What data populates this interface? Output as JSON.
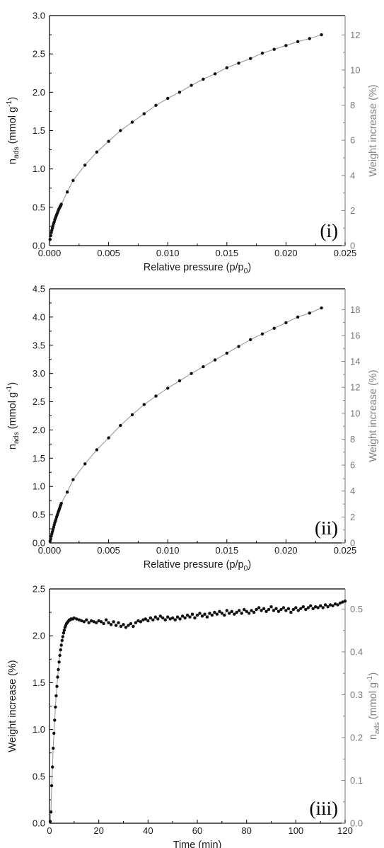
{
  "chart_data": [
    {
      "type": "scatter",
      "panel_label": "(i)",
      "xlabel": "Relative pressure (p/p₀)",
      "ylabel": "n_ads (mmol g⁻¹)",
      "y2label": "Weight increase (%)",
      "xlim": [
        0,
        0.025
      ],
      "ylim": [
        0,
        3.0
      ],
      "y2lim": [
        0,
        13.1
      ],
      "xticks": [
        "0.000",
        "0.005",
        "0.010",
        "0.015",
        "0.020",
        "0.025"
      ],
      "yticks": [
        "0.0",
        "0.5",
        "1.0",
        "1.5",
        "2.0",
        "2.5",
        "3.0"
      ],
      "y2ticks": [
        "0",
        "2",
        "4",
        "6",
        "8",
        "10",
        "12"
      ],
      "series": [
        {
          "x": [
            5e-05,
            0.0001,
            0.00015,
            0.0002,
            0.00025,
            0.0003,
            0.00035,
            0.0004,
            0.00045,
            0.0005,
            0.00055,
            0.0006,
            0.00065,
            0.0007,
            0.00075,
            0.0008,
            0.00085,
            0.0009,
            0.00095,
            0.001,
            0.0015,
            0.002,
            0.003,
            0.004,
            0.005,
            0.006,
            0.007,
            0.008,
            0.009,
            0.01,
            0.011,
            0.012,
            0.013,
            0.014,
            0.015,
            0.016,
            0.017,
            0.018,
            0.019,
            0.02,
            0.021,
            0.022,
            0.023
          ],
          "y": [
            0.08,
            0.13,
            0.17,
            0.2,
            0.23,
            0.26,
            0.29,
            0.31,
            0.34,
            0.36,
            0.38,
            0.4,
            0.42,
            0.44,
            0.46,
            0.48,
            0.49,
            0.51,
            0.52,
            0.54,
            0.7,
            0.85,
            1.05,
            1.22,
            1.36,
            1.5,
            1.61,
            1.72,
            1.83,
            1.92,
            2.0,
            2.09,
            2.17,
            2.24,
            2.32,
            2.38,
            2.44,
            2.51,
            2.56,
            2.61,
            2.66,
            2.7,
            2.75
          ]
        }
      ]
    },
    {
      "type": "scatter",
      "panel_label": "(ii)",
      "xlabel": "Relative pressure (p/p₀)",
      "ylabel": "n_ads (mmol g⁻¹)",
      "y2label": "Weight increase (%)",
      "xlim": [
        0,
        0.025
      ],
      "ylim": [
        0,
        4.5
      ],
      "y2lim": [
        0,
        19.6
      ],
      "xticks": [
        "0.000",
        "0.005",
        "0.010",
        "0.015",
        "0.020",
        "0.025"
      ],
      "yticks": [
        "0.0",
        "0.5",
        "1.0",
        "1.5",
        "2.0",
        "2.5",
        "3.0",
        "3.5",
        "4.0",
        "4.5"
      ],
      "y2ticks": [
        "0",
        "2",
        "4",
        "6",
        "8",
        "10",
        "12",
        "14",
        "16",
        "18"
      ],
      "series": [
        {
          "x": [
            5e-05,
            0.0001,
            0.00015,
            0.0002,
            0.00025,
            0.0003,
            0.00035,
            0.0004,
            0.00045,
            0.0005,
            0.00055,
            0.0006,
            0.00065,
            0.0007,
            0.00075,
            0.0008,
            0.00085,
            0.0009,
            0.00095,
            0.001,
            0.0015,
            0.002,
            0.003,
            0.004,
            0.005,
            0.006,
            0.007,
            0.008,
            0.009,
            0.01,
            0.011,
            0.012,
            0.013,
            0.014,
            0.015,
            0.016,
            0.017,
            0.018,
            0.019,
            0.02,
            0.021,
            0.022,
            0.023
          ],
          "y": [
            0.03,
            0.07,
            0.12,
            0.16,
            0.2,
            0.24,
            0.28,
            0.32,
            0.36,
            0.39,
            0.42,
            0.46,
            0.49,
            0.52,
            0.55,
            0.58,
            0.61,
            0.64,
            0.67,
            0.7,
            0.9,
            1.12,
            1.4,
            1.65,
            1.86,
            2.08,
            2.27,
            2.45,
            2.6,
            2.74,
            2.87,
            3.0,
            3.12,
            3.24,
            3.36,
            3.48,
            3.6,
            3.7,
            3.8,
            3.9,
            4.0,
            4.07,
            4.16
          ]
        }
      ]
    },
    {
      "type": "scatter",
      "panel_label": "(iii)",
      "xlabel": "Time (min)",
      "ylabel": "Weight increase (%)",
      "y2label": "n_ads (mmol g⁻¹)",
      "xlim": [
        0,
        120
      ],
      "ylim": [
        0,
        2.5
      ],
      "y2lim": [
        0,
        0.547
      ],
      "xticks": [
        "0",
        "20",
        "40",
        "60",
        "80",
        "100",
        "120"
      ],
      "yticks": [
        "0.0",
        "0.5",
        "1.0",
        "1.5",
        "2.0",
        "2.5"
      ],
      "y2ticks": [
        "0.0",
        "0.1",
        "0.2",
        "0.3",
        "0.4",
        "0.5"
      ],
      "series": [
        {
          "x": [
            0.3,
            0.6,
            0.9,
            1.2,
            1.5,
            1.8,
            2.1,
            2.4,
            2.7,
            3.0,
            3.3,
            3.6,
            3.9,
            4.2,
            4.5,
            4.8,
            5.1,
            5.4,
            5.7,
            6.0,
            6.3,
            6.6,
            6.9,
            7.2,
            7.5,
            7.8,
            8.1,
            8.4,
            8.7,
            9.0,
            9.5,
            10,
            11,
            12,
            13,
            14,
            15,
            16,
            17,
            18,
            19,
            20,
            21,
            22,
            23,
            24,
            25,
            26,
            27,
            28,
            29,
            30,
            31,
            32,
            33,
            34,
            35,
            36,
            37,
            38,
            39,
            40,
            41,
            42,
            43,
            44,
            45,
            46,
            47,
            48,
            49,
            50,
            51,
            52,
            53,
            54,
            55,
            56,
            57,
            58,
            59,
            60,
            61,
            62,
            63,
            64,
            65,
            66,
            67,
            68,
            69,
            70,
            71,
            72,
            73,
            74,
            75,
            76,
            77,
            78,
            79,
            80,
            81,
            82,
            83,
            84,
            85,
            86,
            87,
            88,
            89,
            90,
            91,
            92,
            93,
            94,
            95,
            96,
            97,
            98,
            99,
            100,
            101,
            102,
            103,
            104,
            105,
            106,
            107,
            108,
            109,
            110,
            111,
            112,
            113,
            114,
            115,
            116,
            117,
            118,
            119,
            120
          ],
          "y": [
            0.02,
            0.12,
            0.4,
            0.6,
            0.8,
            0.96,
            1.1,
            1.24,
            1.36,
            1.46,
            1.56,
            1.64,
            1.72,
            1.79,
            1.85,
            1.9,
            1.95,
            1.99,
            2.03,
            2.06,
            2.09,
            2.11,
            2.13,
            2.14,
            2.15,
            2.16,
            2.17,
            2.17,
            2.18,
            2.18,
            2.18,
            2.19,
            2.18,
            2.17,
            2.16,
            2.15,
            2.17,
            2.14,
            2.16,
            2.15,
            2.14,
            2.16,
            2.15,
            2.13,
            2.17,
            2.14,
            2.12,
            2.15,
            2.11,
            2.14,
            2.1,
            2.12,
            2.09,
            2.11,
            2.13,
            2.1,
            2.14,
            2.16,
            2.15,
            2.17,
            2.18,
            2.16,
            2.19,
            2.17,
            2.2,
            2.18,
            2.21,
            2.19,
            2.17,
            2.2,
            2.18,
            2.19,
            2.17,
            2.2,
            2.18,
            2.21,
            2.19,
            2.22,
            2.2,
            2.23,
            2.19,
            2.22,
            2.24,
            2.21,
            2.23,
            2.2,
            2.24,
            2.22,
            2.25,
            2.23,
            2.26,
            2.24,
            2.22,
            2.27,
            2.24,
            2.26,
            2.23,
            2.25,
            2.27,
            2.24,
            2.28,
            2.26,
            2.24,
            2.27,
            2.25,
            2.28,
            2.3,
            2.27,
            2.29,
            2.26,
            2.28,
            2.31,
            2.27,
            2.29,
            2.26,
            2.28,
            2.3,
            2.27,
            2.29,
            2.25,
            2.28,
            2.3,
            2.27,
            2.29,
            2.31,
            2.28,
            2.3,
            2.32,
            2.29,
            2.31,
            2.3,
            2.32,
            2.3,
            2.33,
            2.31,
            2.33,
            2.32,
            2.34,
            2.33,
            2.35,
            2.36,
            2.37
          ]
        }
      ]
    }
  ]
}
